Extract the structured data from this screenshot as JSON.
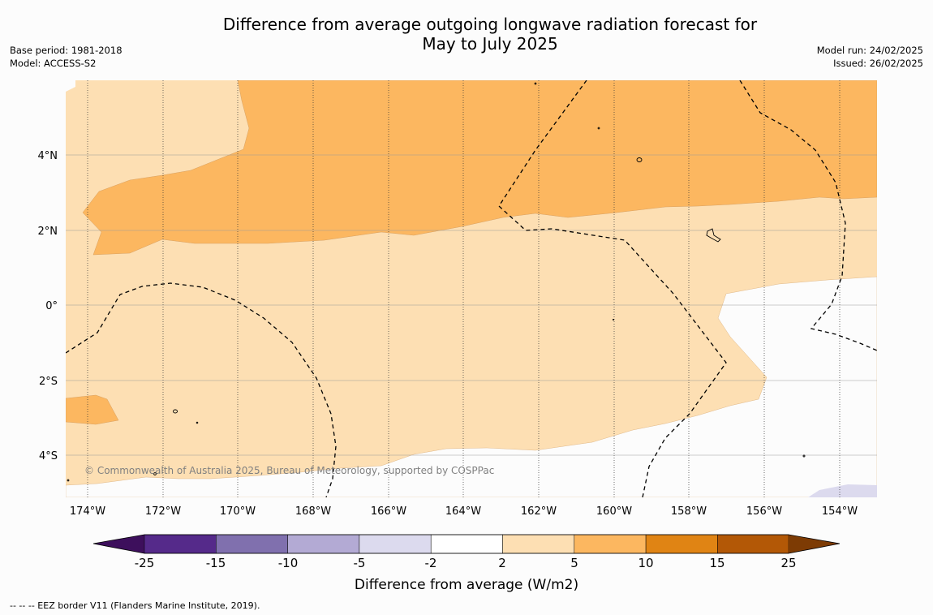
{
  "title_line1": "Difference from average outgoing longwave radiation forecast for",
  "title_line2": "May to July 2025",
  "left_meta": {
    "base_period": "Base period: 1981-2018",
    "model": "Model: ACCESS-S2"
  },
  "right_meta": {
    "model_run": "Model run: 24/02/2025",
    "issued": "Issued: 26/02/2025"
  },
  "copyright": "© Commonwealth of Australia 2025, Bureau of Meteorology, supported by COSPPac",
  "lon_labels": [
    "174°W",
    "172°W",
    "170°W",
    "168°W",
    "166°W",
    "164°W",
    "162°W",
    "160°W",
    "158°W",
    "156°W",
    "154°W"
  ],
  "lat_labels": [
    "4°N",
    "2°N",
    "0°",
    "2°S",
    "4°S"
  ],
  "colorbar": {
    "label": "Difference from average (W/m2)",
    "ticks": [
      "-25",
      "-15",
      "-10",
      "-5",
      "-2",
      "2",
      "5",
      "10",
      "15",
      "25"
    ],
    "colors": [
      "#3d0f5c",
      "#552a8a",
      "#8070ae",
      "#b3aad4",
      "#dcdaee",
      "#ffffff",
      "#fddfb3",
      "#fcb760",
      "#e08414",
      "#b35806",
      "#7d3b04"
    ]
  },
  "footnote": "--  --  -- EEZ border V11 (Flanders Marine Institute, 2019)."
}
